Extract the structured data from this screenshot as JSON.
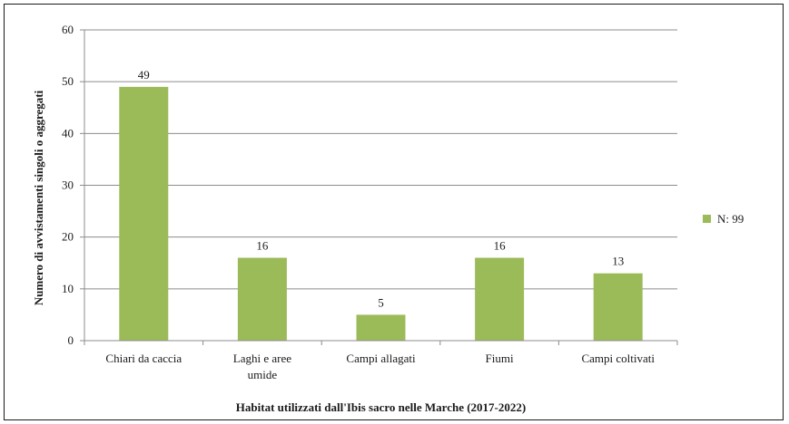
{
  "chart_data": {
    "type": "bar",
    "title": "",
    "xlabel": "Habitat  utilizzati dall'Ibis  sacro nelle Marche (2017-2022)",
    "ylabel": "Numero di avvistamenti  singoli o aggregati",
    "ylim": [
      0,
      60
    ],
    "yticks": [
      0,
      10,
      20,
      30,
      40,
      50,
      60
    ],
    "categories": [
      [
        "Chiari da caccia"
      ],
      [
        "Laghi e aree",
        "umide"
      ],
      [
        "Campi allagati"
      ],
      [
        "Fiumi"
      ],
      [
        "Campi coltivati"
      ]
    ],
    "series": [
      {
        "name": "N: 99",
        "values": [
          49,
          16,
          5,
          16,
          13
        ],
        "color": "#9bbb59"
      }
    ],
    "grid": true,
    "legend_position": "right"
  }
}
